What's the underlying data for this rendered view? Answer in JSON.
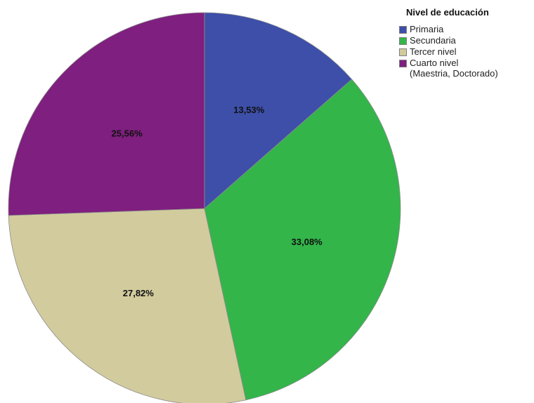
{
  "chart_data": {
    "type": "pie",
    "legend_title": "Nivel de educación",
    "legend_position": "top-right",
    "slices": [
      {
        "label": "Primaria",
        "value": 13.53,
        "value_label": "13,53%",
        "color": "#3d4fa8"
      },
      {
        "label": "Secundaria",
        "value": 33.08,
        "value_label": "33,08%",
        "color": "#33b54a"
      },
      {
        "label": "Tercer nivel",
        "value": 27.82,
        "value_label": "27,82%",
        "color": "#d2cb9d"
      },
      {
        "label": "Cuarto nivel\n(Maestria, Doctorado)",
        "value": 25.56,
        "value_label": "25,56%",
        "color": "#7f1f7f"
      }
    ]
  }
}
